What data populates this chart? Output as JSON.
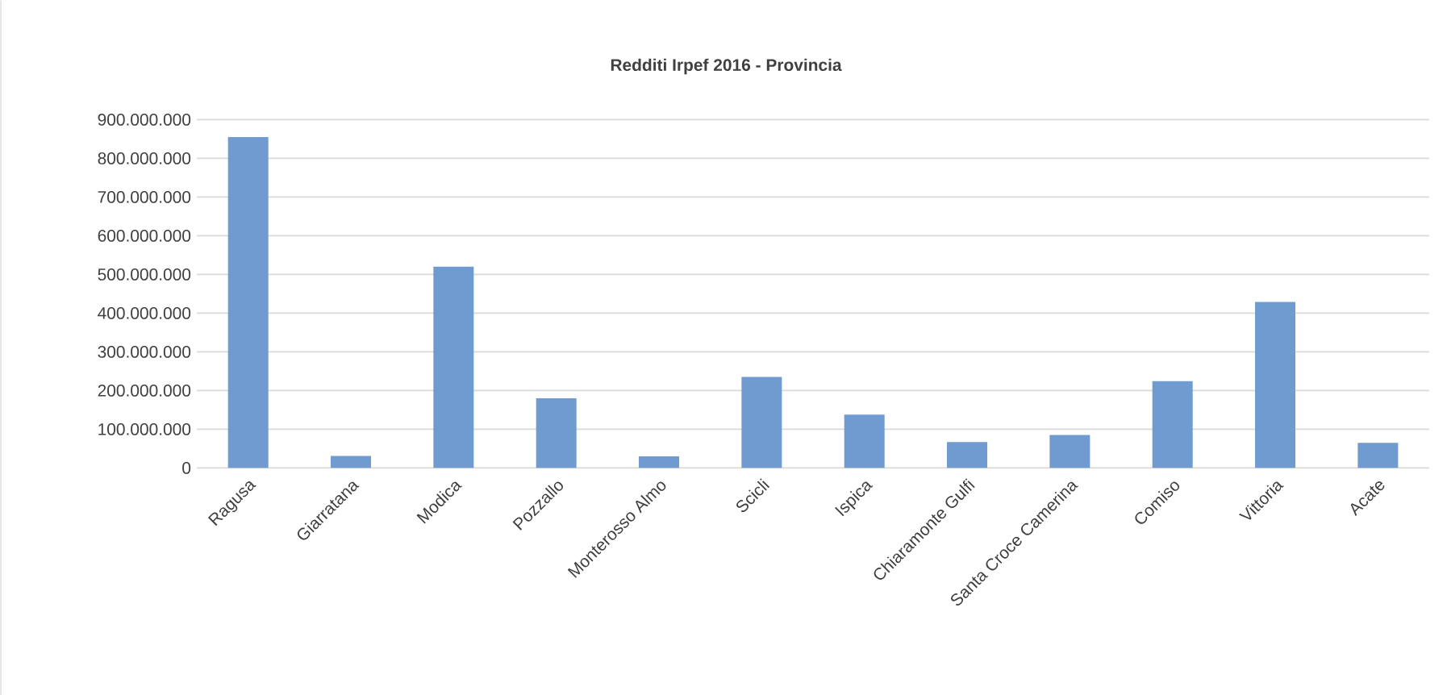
{
  "chart_data": {
    "type": "bar",
    "title": "Redditi Irpef 2016 - Provincia",
    "categories": [
      "Ragusa",
      "Giarratana",
      "Modica",
      "Pozzallo",
      "Monterosso Almo",
      "Scicli",
      "Ispica",
      "Chiaramonte Gulfi",
      "Santa Croce Camerina",
      "Comiso",
      "Vittoria",
      "Acate"
    ],
    "values": [
      855000000,
      31000000,
      520000000,
      180000000,
      30000000,
      235000000,
      138000000,
      67000000,
      85000000,
      224000000,
      429000000,
      65000000
    ],
    "color": "#6f9bd0",
    "ylim": [
      0,
      900000000
    ],
    "yticks": [
      {
        "value": 0,
        "label": "0"
      },
      {
        "value": 100000000,
        "label": "100.000.000"
      },
      {
        "value": 200000000,
        "label": "200.000.000"
      },
      {
        "value": 300000000,
        "label": "300.000.000"
      },
      {
        "value": 400000000,
        "label": "400.000.000"
      },
      {
        "value": 500000000,
        "label": "500.000.000"
      },
      {
        "value": 600000000,
        "label": "600.000.000"
      },
      {
        "value": 700000000,
        "label": "700.000.000"
      },
      {
        "value": 800000000,
        "label": "800.000.000"
      },
      {
        "value": 900000000,
        "label": "900.000.000"
      }
    ],
    "grid": "y"
  }
}
